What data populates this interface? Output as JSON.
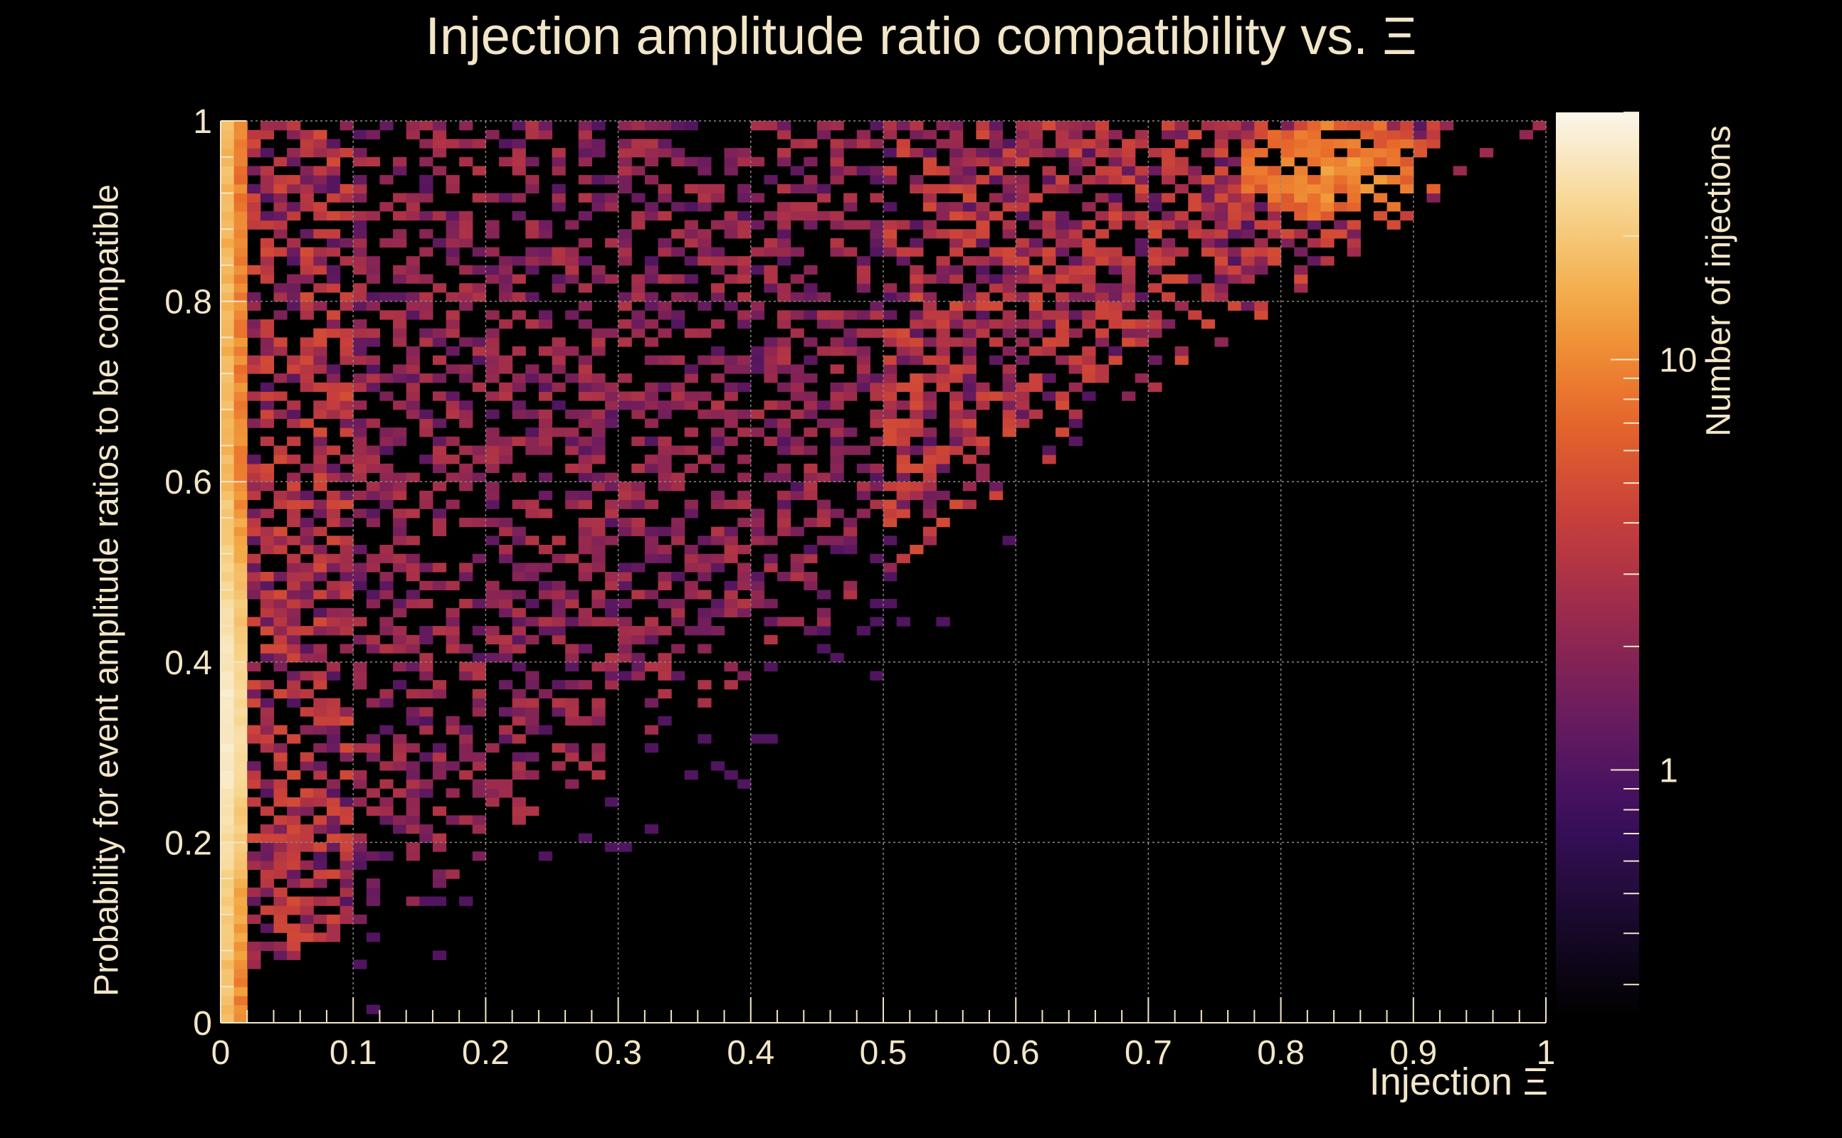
{
  "chart_data": {
    "type": "heatmap",
    "title": "Injection amplitude ratio compatibility vs.  Ξ",
    "xlabel": "Injection Ξ",
    "ylabel": "Probability for event amplitude ratios to be compatible",
    "zlabel": "Number of injections",
    "xlim": [
      0,
      1
    ],
    "ylim": [
      0,
      1
    ],
    "x_ticks": [
      "0",
      "0.1",
      "0.2",
      "0.3",
      "0.4",
      "0.5",
      "0.6",
      "0.7",
      "0.8",
      "0.9",
      "1"
    ],
    "y_ticks": [
      "0",
      "0.2",
      "0.4",
      "0.6",
      "0.8",
      "1"
    ],
    "z_scale": "log",
    "z_ticks": [
      "1",
      "10"
    ],
    "grid": true,
    "bins": {
      "nx": 100,
      "ny": 100
    },
    "features": [
      {
        "x": [
          0.0,
          0.02
        ],
        "y": [
          0.0,
          1.0
        ],
        "counts": "very high (10-30+), brightest at y 0.2-0.5"
      },
      {
        "x": [
          0.02,
          0.1
        ],
        "y": [
          0.05,
          1.0
        ],
        "counts": "2-5"
      },
      {
        "x": [
          0.1,
          0.5
        ],
        "y": [
          0.3,
          1.0
        ],
        "counts": "1-3, sparse"
      },
      {
        "x": [
          0.5,
          0.75
        ],
        "y": [
          0.6,
          1.0
        ],
        "counts": "1-5"
      },
      {
        "x": [
          0.8,
          0.9
        ],
        "y": [
          0.88,
          1.0
        ],
        "counts": "5-12"
      }
    ],
    "boundary": "filled region lies above the line y ≈ x (upper-left triangle)"
  },
  "colors": {
    "background": "#000000",
    "text": "#f3e6c8",
    "grid": "#8a8a8a",
    "palette": [
      "#000000",
      "#1a0a2e",
      "#3b0f60",
      "#6a1c5e",
      "#9a2a4e",
      "#c9403a",
      "#e8692a",
      "#f2a23c",
      "#f7d48a",
      "#fbf6ec"
    ]
  }
}
